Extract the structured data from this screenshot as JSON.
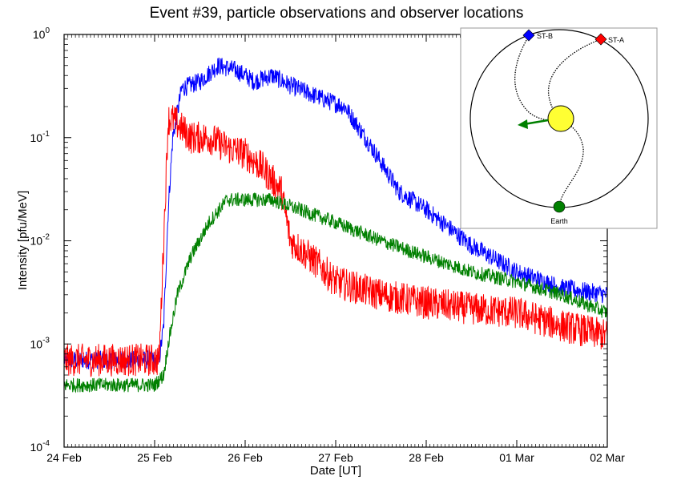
{
  "chart_data": {
    "type": "line",
    "title": "Event #39, particle observations and observer locations",
    "xlabel": "Date [UT]",
    "ylabel": "Intensity [pfu/MeV]",
    "yscale": "log",
    "xlim": [
      "24 Feb",
      "02 Mar"
    ],
    "ylim": [
      0.0001,
      1
    ],
    "x_ticks": [
      "24 Feb",
      "25 Feb",
      "26 Feb",
      "27 Feb",
      "28 Feb",
      "01 Mar",
      "02 Mar"
    ],
    "y_ticks": [
      {
        "base": "10",
        "exp": "-4",
        "value": 0.0001
      },
      {
        "base": "10",
        "exp": "-3",
        "value": 0.001
      },
      {
        "base": "10",
        "exp": "-2",
        "value": 0.01
      },
      {
        "base": "10",
        "exp": "-1",
        "value": 0.1
      },
      {
        "base": "10",
        "exp": "0",
        "value": 1
      }
    ],
    "grid": false,
    "series": [
      {
        "color": "#0000ff",
        "noise": 0.09,
        "x": [
          0,
          0.9,
          1.05,
          1.1,
          1.15,
          1.2,
          1.3,
          1.5,
          1.7,
          1.9,
          2.0,
          2.1,
          2.3,
          2.5,
          2.7,
          2.9,
          3.1,
          3.4,
          3.7,
          4.0,
          4.5,
          5.0,
          5.5,
          6.0
        ],
        "y": [
          0.0007,
          0.0007,
          0.0007,
          0.0015,
          0.02,
          0.1,
          0.3,
          0.35,
          0.5,
          0.45,
          0.4,
          0.35,
          0.4,
          0.32,
          0.27,
          0.23,
          0.2,
          0.08,
          0.03,
          0.02,
          0.009,
          0.005,
          0.0035,
          0.003
        ]
      },
      {
        "color": "#ff0000",
        "noise": 0.16,
        "x": [
          0,
          0.9,
          1.05,
          1.1,
          1.15,
          1.2,
          1.4,
          1.6,
          1.8,
          2.0,
          2.2,
          2.4,
          2.5,
          2.8,
          3.0,
          3.5,
          4.0,
          4.5,
          5.0,
          5.5,
          6.0
        ],
        "y": [
          0.0007,
          0.0007,
          0.0007,
          0.01,
          0.15,
          0.15,
          0.1,
          0.1,
          0.08,
          0.07,
          0.05,
          0.03,
          0.01,
          0.006,
          0.004,
          0.003,
          0.0025,
          0.0022,
          0.002,
          0.0015,
          0.0012
        ]
      },
      {
        "color": "#008000",
        "noise": 0.07,
        "x": [
          0,
          0.5,
          1.0,
          1.1,
          1.15,
          1.25,
          1.4,
          1.6,
          1.8,
          2.0,
          2.3,
          2.6,
          3.0,
          3.5,
          4.0,
          4.5,
          5.0,
          5.5,
          6.0
        ],
        "y": [
          0.0004,
          0.0004,
          0.0004,
          0.0005,
          0.001,
          0.003,
          0.007,
          0.015,
          0.025,
          0.025,
          0.025,
          0.02,
          0.015,
          0.01,
          0.007,
          0.005,
          0.004,
          0.003,
          0.002
        ]
      }
    ],
    "inset": {
      "markers": [
        {
          "label": "ST-B",
          "color": "#0000ff"
        },
        {
          "label": "ST-A",
          "color": "#ff0000"
        },
        {
          "label": "Earth",
          "color": "#008000"
        }
      ],
      "sun_color": "#ffff33",
      "arrow_color": "#008000"
    }
  }
}
